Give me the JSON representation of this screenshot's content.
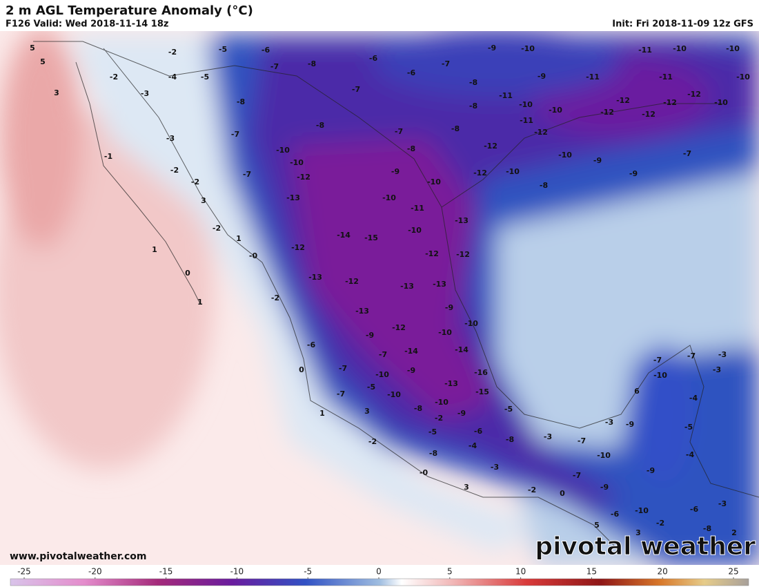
{
  "header": {
    "title": "2 m AGL Temperature Anomaly (°C)",
    "run": "F126 Valid: Wed 2018-11-14 18z",
    "init": "Init: Fri 2018-11-09 12z GFS"
  },
  "footer": {
    "website": "www.pivotalweather.com",
    "logo": "pivotal weather"
  },
  "colorbar": {
    "ticks": [
      -25,
      -20,
      -15,
      -10,
      -5,
      0,
      5,
      10,
      15,
      20,
      25
    ]
  },
  "map_labels": [
    5,
    5,
    3,
    -2,
    -5,
    -6,
    -6,
    -9,
    -10,
    -11,
    -10,
    -10,
    -2,
    -4,
    -5,
    -7,
    -8,
    -6,
    -7,
    -3,
    -8,
    -7,
    -8,
    -11,
    -9,
    -11,
    -11,
    -10,
    -12,
    -10,
    -8,
    -10,
    -12,
    -12,
    -12,
    -12,
    -10,
    -3,
    -7,
    -8,
    -7,
    -8,
    -11,
    -12,
    -1,
    -10,
    -8,
    -12,
    -7,
    -2,
    -10,
    -7,
    -12,
    -9,
    -12,
    -10,
    -10,
    -9,
    -9,
    -2,
    -10,
    -8,
    3,
    -13,
    -10,
    -11,
    -13,
    -2,
    1,
    -14,
    -15,
    -10,
    1,
    {
      "value": 0,
      "label": "-0"
    },
    -12,
    -12,
    -12,
    0,
    -13,
    -12,
    -13,
    -13,
    1,
    -2,
    -9,
    -13,
    -10,
    -12,
    -6,
    -9,
    -10,
    -14,
    -7,
    -14,
    0,
    -7,
    -10,
    -9,
    -16,
    -7,
    -7,
    -3,
    -10,
    -3,
    -5,
    -10,
    -13,
    -15,
    -7,
    6,
    -4,
    1,
    3,
    -8,
    -10,
    -9,
    -5,
    -2,
    -3,
    -9,
    -5,
    -5,
    -6,
    -2,
    -8,
    -3,
    -7,
    -4,
    -8,
    -10,
    -4,
    -9,
    -3,
    {
      "value": 0,
      "label": "-0"
    },
    -7,
    -9,
    3,
    -2,
    0,
    -10,
    -6,
    -6,
    -3,
    5,
    3,
    -2,
    2,
    -8
  ]
}
